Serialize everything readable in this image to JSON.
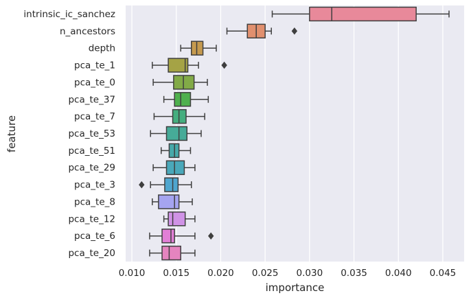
{
  "chart_data": {
    "type": "box",
    "orientation": "horizontal",
    "xlabel": "importance",
    "ylabel": "feature",
    "xlim": [
      0.0093,
      0.0474
    ],
    "xticks": [
      0.01,
      0.015,
      0.02,
      0.025,
      0.03,
      0.035,
      0.04,
      0.045
    ],
    "xtick_labels": [
      "0.010",
      "0.015",
      "0.020",
      "0.025",
      "0.030",
      "0.035",
      "0.040",
      "0.045"
    ],
    "grid": true,
    "background": "#EAEAF2",
    "features": [
      {
        "name": "intrinsic_ic_sanchez",
        "whisker_low": 0.0258,
        "q1": 0.03,
        "median": 0.0325,
        "q3": 0.042,
        "whisker_high": 0.0457,
        "outliers": [],
        "color": "#E8899A"
      },
      {
        "name": "n_ancestors",
        "whisker_low": 0.0207,
        "q1": 0.023,
        "median": 0.024,
        "q3": 0.025,
        "whisker_high": 0.0257,
        "outliers": [
          0.0283
        ],
        "color": "#E1906F"
      },
      {
        "name": "depth",
        "whisker_low": 0.0155,
        "q1": 0.0167,
        "median": 0.0173,
        "q3": 0.018,
        "whisker_high": 0.0195,
        "outliers": [],
        "color": "#C59A4F"
      },
      {
        "name": "pca_te_1",
        "whisker_low": 0.0123,
        "q1": 0.0141,
        "median": 0.016,
        "q3": 0.0163,
        "whisker_high": 0.0175,
        "outliers": [
          0.0204
        ],
        "color": "#A5A345"
      },
      {
        "name": "pca_te_0",
        "whisker_low": 0.0124,
        "q1": 0.0147,
        "median": 0.0158,
        "q3": 0.017,
        "whisker_high": 0.0185,
        "outliers": [],
        "color": "#82AA47"
      },
      {
        "name": "pca_te_37",
        "whisker_low": 0.0136,
        "q1": 0.0148,
        "median": 0.0155,
        "q3": 0.0166,
        "whisker_high": 0.0186,
        "outliers": [],
        "color": "#4FB04E"
      },
      {
        "name": "pca_te_7",
        "whisker_low": 0.0125,
        "q1": 0.0146,
        "median": 0.0153,
        "q3": 0.0161,
        "whisker_high": 0.0182,
        "outliers": [],
        "color": "#45AE7F"
      },
      {
        "name": "pca_te_53",
        "whisker_low": 0.0121,
        "q1": 0.0139,
        "median": 0.0153,
        "q3": 0.0162,
        "whisker_high": 0.0178,
        "outliers": [],
        "color": "#46AB98"
      },
      {
        "name": "pca_te_51",
        "whisker_low": 0.0133,
        "q1": 0.0142,
        "median": 0.0148,
        "q3": 0.0153,
        "whisker_high": 0.0166,
        "outliers": [],
        "color": "#47A9A9"
      },
      {
        "name": "pca_te_29",
        "whisker_low": 0.0124,
        "q1": 0.0139,
        "median": 0.0148,
        "q3": 0.0159,
        "whisker_high": 0.0171,
        "outliers": [],
        "color": "#4AA8BA"
      },
      {
        "name": "pca_te_3",
        "whisker_low": 0.0121,
        "q1": 0.0137,
        "median": 0.0146,
        "q3": 0.0152,
        "whisker_high": 0.0167,
        "outliers": [
          0.0111
        ],
        "color": "#4FA6CF"
      },
      {
        "name": "pca_te_8",
        "whisker_low": 0.0123,
        "q1": 0.013,
        "median": 0.0148,
        "q3": 0.0153,
        "whisker_high": 0.0168,
        "outliers": [],
        "color": "#A5A4F0"
      },
      {
        "name": "pca_te_12",
        "whisker_low": 0.0136,
        "q1": 0.0141,
        "median": 0.0146,
        "q3": 0.016,
        "whisker_high": 0.0171,
        "outliers": [],
        "color": "#D093E6"
      },
      {
        "name": "pca_te_6",
        "whisker_low": 0.012,
        "q1": 0.0134,
        "median": 0.0144,
        "q3": 0.0148,
        "whisker_high": 0.0171,
        "outliers": [
          0.0189
        ],
        "color": "#E27FD6"
      },
      {
        "name": "pca_te_20",
        "whisker_low": 0.012,
        "q1": 0.0134,
        "median": 0.0142,
        "q3": 0.0155,
        "whisker_high": 0.0171,
        "outliers": [],
        "color": "#E584BF"
      }
    ]
  }
}
